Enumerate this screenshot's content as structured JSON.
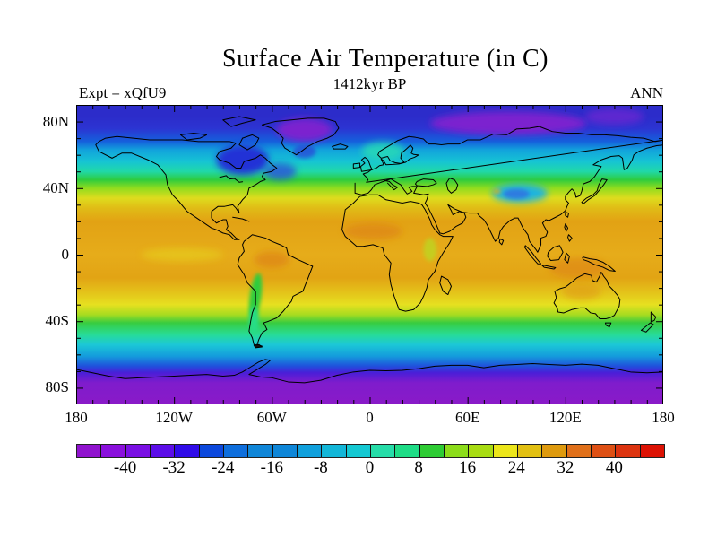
{
  "header": {
    "title": "Surface Air Temperature (in C)",
    "subtitle": "1412kyr BP",
    "experiment_label": "Expt = xQfU9",
    "season_label": "ANN"
  },
  "chart_data": {
    "type": "heatmap",
    "subtype": "filled-contour world map, equirectangular projection",
    "title": "Surface Air Temperature (in C)",
    "subtitle": "1412kyr BP",
    "experiment": "xQfU9",
    "season": "ANN",
    "units": "degrees C",
    "x_axis": {
      "label_values": [
        "180",
        "120W",
        "60W",
        "0",
        "60E",
        "120E",
        "180"
      ],
      "range_deg": [
        -180,
        180
      ],
      "minor_tick_deg": 10
    },
    "y_axis": {
      "label_values": [
        "80N",
        "40N",
        "0",
        "40S",
        "80S"
      ],
      "range_deg": [
        -90,
        90
      ],
      "minor_tick_deg": 10
    },
    "lon_ticks": [
      {
        "label": "180",
        "lon": -180
      },
      {
        "label": "120W",
        "lon": -120
      },
      {
        "label": "60W",
        "lon": -60
      },
      {
        "label": "0",
        "lon": 0
      },
      {
        "label": "60E",
        "lon": 60
      },
      {
        "label": "120E",
        "lon": 120
      },
      {
        "label": "180",
        "lon": 180
      }
    ],
    "lat_ticks": [
      {
        "label": "80N",
        "lat": 80
      },
      {
        "label": "40N",
        "lat": 40
      },
      {
        "label": "0",
        "lat": 0
      },
      {
        "label": "40S",
        "lat": -40
      },
      {
        "label": "80S",
        "lat": -80
      }
    ],
    "colorbar": {
      "orientation": "horizontal",
      "min": -48,
      "max": 48,
      "step": 4,
      "tick_values": [
        -40,
        -32,
        -24,
        -16,
        -8,
        0,
        8,
        16,
        24,
        32,
        40
      ],
      "colors": [
        "#9013CE",
        "#8A10DC",
        "#7A10E4",
        "#5C0EE8",
        "#300CE8",
        "#0C48DC",
        "#0E6EDC",
        "#1086D8",
        "#0E86D8",
        "#10A0DC",
        "#12B6D8",
        "#14C8D2",
        "#26DCA8",
        "#1EDC86",
        "#2ECC34",
        "#8CDC1A",
        "#A8DC12",
        "#ECE61A",
        "#E2C012",
        "#DE9A0E",
        "#E0701A",
        "#DE5014",
        "#DC3410",
        "#DC1204"
      ]
    },
    "zonal_bands": [
      {
        "lat": 90,
        "color": "#2C2CCA"
      },
      {
        "lat": 83,
        "color": "#2C2CCA"
      },
      {
        "lat": 76,
        "color": "#2C34D2"
      },
      {
        "lat": 68,
        "color": "#1560DC"
      },
      {
        "lat": 63,
        "color": "#12A2DC"
      },
      {
        "lat": 56,
        "color": "#16C4D4"
      },
      {
        "lat": 50,
        "color": "#20D8A8"
      },
      {
        "lat": 45,
        "color": "#2ECC3E"
      },
      {
        "lat": 40,
        "color": "#90DC1E"
      },
      {
        "lat": 34,
        "color": "#DEDC1E"
      },
      {
        "lat": 28,
        "color": "#E0BC16"
      },
      {
        "lat": 20,
        "color": "#E2A214"
      },
      {
        "lat": 0,
        "color": "#E6AC1A"
      },
      {
        "lat": -14,
        "color": "#E2A414"
      },
      {
        "lat": -23,
        "color": "#E4C41A"
      },
      {
        "lat": -30,
        "color": "#E6E020"
      },
      {
        "lat": -36,
        "color": "#A8DC20"
      },
      {
        "lat": -41,
        "color": "#38CC40"
      },
      {
        "lat": -48,
        "color": "#28DC96"
      },
      {
        "lat": -54,
        "color": "#1CC8D6"
      },
      {
        "lat": -61,
        "color": "#149CDC"
      },
      {
        "lat": -67,
        "color": "#2050DC"
      },
      {
        "lat": -71,
        "color": "#4A1ED8"
      },
      {
        "lat": -77,
        "color": "#7F1CCC"
      },
      {
        "lat": -90,
        "color": "#8A1AC8"
      }
    ],
    "zonal_mean_temp_c": [
      {
        "lat": 90,
        "t": -30
      },
      {
        "lat": 80,
        "t": -30
      },
      {
        "lat": 70,
        "t": -24
      },
      {
        "lat": 60,
        "t": -12
      },
      {
        "lat": 55,
        "t": -4
      },
      {
        "lat": 50,
        "t": 2
      },
      {
        "lat": 45,
        "t": 8
      },
      {
        "lat": 40,
        "t": 13
      },
      {
        "lat": 35,
        "t": 18
      },
      {
        "lat": 30,
        "t": 21
      },
      {
        "lat": 20,
        "t": 25
      },
      {
        "lat": 10,
        "t": 26
      },
      {
        "lat": 0,
        "t": 26
      },
      {
        "lat": -10,
        "t": 26
      },
      {
        "lat": -20,
        "t": 24
      },
      {
        "lat": -30,
        "t": 18
      },
      {
        "lat": -40,
        "t": 10
      },
      {
        "lat": -50,
        "t": 4
      },
      {
        "lat": -55,
        "t": 0
      },
      {
        "lat": -60,
        "t": -6
      },
      {
        "lat": -65,
        "t": -14
      },
      {
        "lat": -70,
        "t": -26
      },
      {
        "lat": -75,
        "t": -36
      },
      {
        "lat": -80,
        "t": -42
      },
      {
        "lat": -90,
        "t": -46
      }
    ],
    "region_estimates_c": {
      "greenland_interior": -38,
      "arctic_ocean_siberian": -34,
      "hudson_bay_ne_canada": -30,
      "norwegian_sea": 6,
      "tibetan_plateau": -6,
      "sahara_sahel": 29,
      "amazon_north": 28,
      "indonesia_n_australia": 28,
      "andes": 12,
      "southern_ocean_60s": -6,
      "antarctica_interior": -44
    },
    "grid": false,
    "legend_position": "bottom colorbar"
  }
}
